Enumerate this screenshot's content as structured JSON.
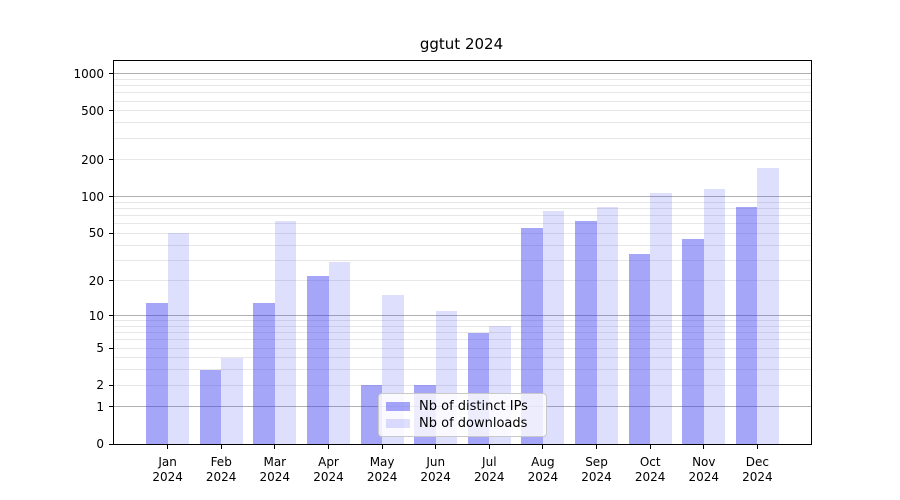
{
  "chart_data": {
    "type": "bar",
    "title": "ggtut 2024",
    "categories": [
      "Jan",
      "Feb",
      "Mar",
      "Apr",
      "May",
      "Jun",
      "Jul",
      "Aug",
      "Sep",
      "Oct",
      "Nov",
      "Dec"
    ],
    "year_label": "2024",
    "series": [
      {
        "key": "distinct-ips",
        "name": "Nb of distinct IPs",
        "color": "rgba(57,57,242,0.45)",
        "values": [
          13,
          3,
          13,
          22,
          2,
          2,
          7,
          55,
          63,
          34,
          45,
          82
        ]
      },
      {
        "key": "downloads",
        "name": "Nb of downloads",
        "color": "rgba(57,57,242,0.17)",
        "values": [
          50,
          4,
          63,
          29,
          15,
          11,
          8,
          77,
          83,
          108,
          115,
          170
        ]
      }
    ],
    "y_scale": "pseudo-log (log10(1+y))",
    "y_ticks": [
      0,
      1,
      2,
      5,
      10,
      20,
      50,
      100,
      200,
      500,
      1000
    ],
    "y_axis_top_value": 1270,
    "ylim": [
      0,
      1270
    ],
    "xlabel": "",
    "ylabel": "",
    "grid": {
      "major": [
        1,
        10,
        100,
        1000
      ],
      "minor": [
        2,
        3,
        4,
        5,
        6,
        7,
        8,
        9,
        20,
        30,
        40,
        50,
        60,
        70,
        80,
        90,
        200,
        300,
        400,
        500,
        600,
        700,
        800,
        900
      ],
      "major_color": "#b0b0b0",
      "minor_color": "#e7e7e7"
    },
    "legend": {
      "position": "lower center, inside plot",
      "entries": [
        "Nb of distinct IPs",
        "Nb of downloads"
      ]
    },
    "axis_color": "#000000",
    "background": "#ffffff"
  }
}
